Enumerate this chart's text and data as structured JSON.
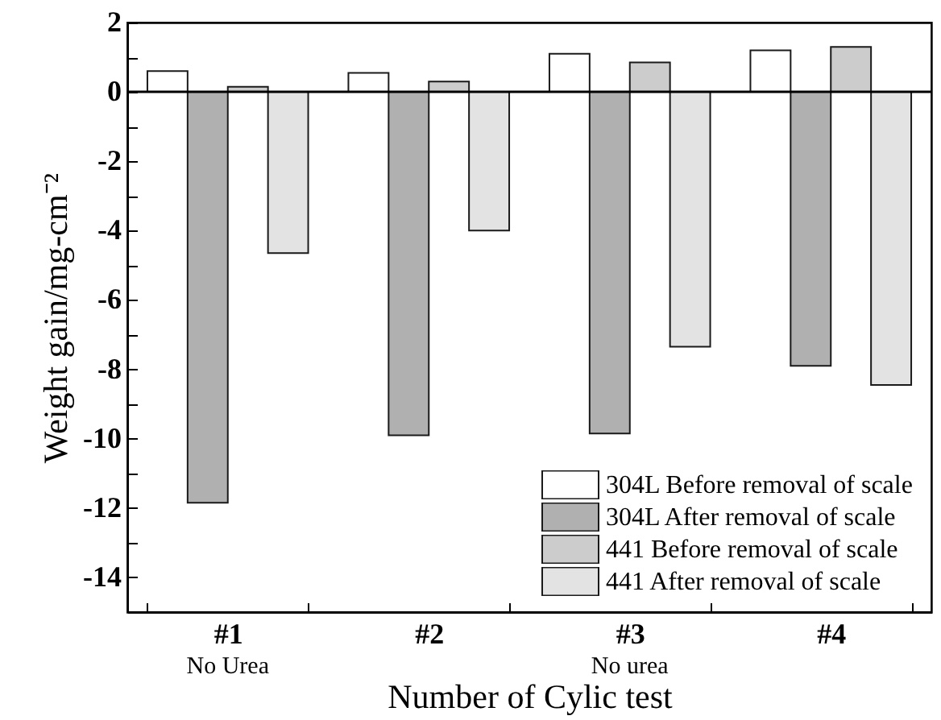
{
  "chart_data": {
    "type": "bar",
    "xlabel": "Number of Cylic test",
    "ylabel": "Weight gain/mg-cm⁻²",
    "categories": [
      "#1\nNo Urea",
      "#2",
      "#3\nNo urea",
      "#4"
    ],
    "series": [
      {
        "name": "304L Before removal of scale",
        "color": "#ffffff",
        "values": [
          0.6,
          0.55,
          1.1,
          1.2
        ]
      },
      {
        "name": "304L After removal of scale",
        "color": "#b0b0b0",
        "values": [
          -11.85,
          -9.9,
          -9.85,
          -7.9
        ]
      },
      {
        "name": "441 Before removal of scale",
        "color": "#cccccc",
        "values": [
          0.15,
          0.3,
          0.85,
          1.3
        ]
      },
      {
        "name": "441 After removal of scale",
        "color": "#e3e3e3",
        "values": [
          -4.65,
          -4.0,
          -7.35,
          -8.45
        ]
      }
    ],
    "ylim": [
      -15,
      2
    ],
    "yticks": [
      -14,
      {
        "value": -13,
        "label": null
      },
      -12,
      {
        "value": -11,
        "label": null
      },
      -10,
      {
        "value": -9,
        "label": null
      },
      -8,
      {
        "value": -7,
        "label": null
      },
      -6,
      {
        "value": -5,
        "label": null
      },
      -4,
      {
        "value": -3,
        "label": null
      },
      -2,
      {
        "value": -1,
        "label": null
      },
      0,
      {
        "value": 1,
        "label": null
      },
      2
    ],
    "ref_lines": [
      {
        "axis": "y",
        "value": 0
      }
    ],
    "legend": "bottom right"
  }
}
